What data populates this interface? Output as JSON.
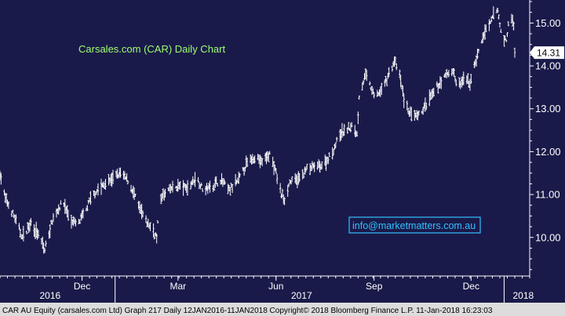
{
  "chart_data": {
    "type": "bar",
    "style": "ohlc",
    "title": "Carsales.com (CAR) Daily Chart",
    "watermark": "info@marketmatters.com.au",
    "last_price_label": "14.31",
    "last_price": 14.31,
    "ylim": [
      9.1,
      15.5
    ],
    "y_ticks": [
      {
        "value": 10.0,
        "label": "10.00"
      },
      {
        "value": 11.0,
        "label": "11.00"
      },
      {
        "value": 12.0,
        "label": "12.00"
      },
      {
        "value": 13.0,
        "label": "13.00"
      },
      {
        "value": 14.0,
        "label": "14.00"
      },
      {
        "value": 15.0,
        "label": "15.00"
      }
    ],
    "x_range": [
      "2016-09-15",
      "2018-01-25"
    ],
    "month_ticks": [
      {
        "date": "2016-12-01",
        "label": "Dec"
      },
      {
        "date": "2017-03-01",
        "label": "Mar"
      },
      {
        "date": "2017-06-01",
        "label": "Jun"
      },
      {
        "date": "2017-09-01",
        "label": "Sep"
      },
      {
        "date": "2017-12-01",
        "label": "Dec"
      }
    ],
    "year_labels": [
      {
        "date": "2016-11-01",
        "label": "2016"
      },
      {
        "date": "2017-06-25",
        "label": "2017"
      },
      {
        "date": "2018-01-19",
        "label": "2018"
      }
    ],
    "year_separators": [
      "2017-01-01",
      "2018-01-01"
    ],
    "anchors": [
      [
        "2016-09-15",
        11.5
      ],
      [
        "2016-09-20",
        10.9
      ],
      [
        "2016-09-28",
        10.5
      ],
      [
        "2016-10-06",
        10.0
      ],
      [
        "2016-10-14",
        10.35
      ],
      [
        "2016-10-22",
        10.0
      ],
      [
        "2016-10-27",
        9.7
      ],
      [
        "2016-11-03",
        10.4
      ],
      [
        "2016-11-13",
        10.85
      ],
      [
        "2016-11-20",
        10.4
      ],
      [
        "2016-11-27",
        10.3
      ],
      [
        "2016-12-04",
        10.6
      ],
      [
        "2016-12-11",
        11.0
      ],
      [
        "2016-12-20",
        11.2
      ],
      [
        "2016-12-31",
        11.4
      ],
      [
        "2017-01-06",
        11.5
      ],
      [
        "2017-01-14",
        11.3
      ],
      [
        "2017-01-22",
        10.8
      ],
      [
        "2017-01-29",
        10.4
      ],
      [
        "2017-02-05",
        10.2
      ],
      [
        "2017-02-09",
        10.0
      ],
      [
        "2017-02-12",
        10.9
      ],
      [
        "2017-02-20",
        11.1
      ],
      [
        "2017-03-01",
        11.2
      ],
      [
        "2017-03-10",
        11.15
      ],
      [
        "2017-03-18",
        11.4
      ],
      [
        "2017-03-25",
        11.1
      ],
      [
        "2017-04-02",
        11.2
      ],
      [
        "2017-04-10",
        11.35
      ],
      [
        "2017-04-18",
        11.1
      ],
      [
        "2017-04-26",
        11.3
      ],
      [
        "2017-05-04",
        11.7
      ],
      [
        "2017-05-12",
        11.9
      ],
      [
        "2017-05-19",
        11.75
      ],
      [
        "2017-05-26",
        11.95
      ],
      [
        "2017-06-01",
        11.5
      ],
      [
        "2017-06-06",
        11.0
      ],
      [
        "2017-06-09",
        10.9
      ],
      [
        "2017-06-14",
        11.3
      ],
      [
        "2017-06-22",
        11.35
      ],
      [
        "2017-06-30",
        11.6
      ],
      [
        "2017-07-08",
        11.65
      ],
      [
        "2017-07-16",
        11.7
      ],
      [
        "2017-07-24",
        12.0
      ],
      [
        "2017-07-31",
        12.4
      ],
      [
        "2017-08-05",
        12.5
      ],
      [
        "2017-08-12",
        12.6
      ],
      [
        "2017-08-16",
        12.4
      ],
      [
        "2017-08-18",
        13.3
      ],
      [
        "2017-08-24",
        13.8
      ],
      [
        "2017-09-01",
        13.3
      ],
      [
        "2017-09-07",
        13.4
      ],
      [
        "2017-09-13",
        13.7
      ],
      [
        "2017-09-20",
        14.1
      ],
      [
        "2017-09-24",
        13.9
      ],
      [
        "2017-09-30",
        13.1
      ],
      [
        "2017-10-06",
        12.85
      ],
      [
        "2017-10-12",
        12.8
      ],
      [
        "2017-10-20",
        13.1
      ],
      [
        "2017-10-30",
        13.5
      ],
      [
        "2017-11-08",
        13.8
      ],
      [
        "2017-11-14",
        13.9
      ],
      [
        "2017-11-18",
        13.5
      ],
      [
        "2017-11-25",
        13.7
      ],
      [
        "2017-11-30",
        13.6
      ],
      [
        "2017-12-04",
        14.0
      ],
      [
        "2017-12-10",
        14.5
      ],
      [
        "2017-12-14",
        14.8
      ],
      [
        "2017-12-18",
        14.9
      ],
      [
        "2017-12-22",
        15.2
      ],
      [
        "2017-12-26",
        15.3
      ],
      [
        "2017-12-29",
        14.8
      ],
      [
        "2018-01-03",
        14.55
      ],
      [
        "2018-01-05",
        15.0
      ],
      [
        "2018-01-08",
        15.1
      ],
      [
        "2018-01-10",
        14.9
      ],
      [
        "2018-01-11",
        14.31
      ]
    ]
  },
  "footer": {
    "text": "CAR AU Equity (carsales.com Ltd) Graph 217  Daily 12JAN2016-11JAN2018 Copyright© 2018 Bloomberg Finance L.P. 11-Jan-2018 16:23:03"
  },
  "colors": {
    "background": "#1a1a4a",
    "bars": "#ffffff",
    "axis": "#ffffff",
    "title": "#9fff6f",
    "watermark_border": "#32c0ff",
    "watermark_text": "#32c0ff",
    "price_tag_bg": "#ffffff",
    "price_tag_text": "#000000",
    "footer_bg": "#dcdcdc",
    "footer_text": "#000000"
  }
}
